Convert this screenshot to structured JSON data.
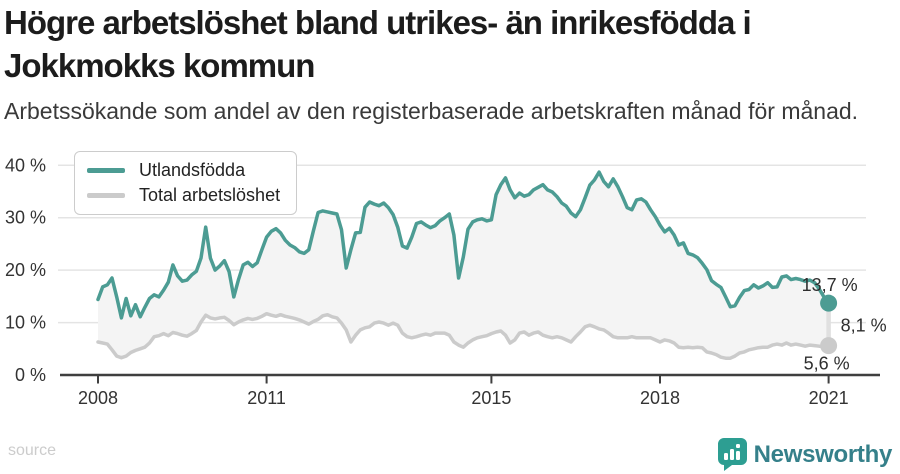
{
  "header": {
    "title": "Högre arbetslöshet bland utrikes- än inrikesfödda i Jokkmokks kommun",
    "subtitle": "Arbetssökande som andel av den registerbaserade arbetskraften månad för månad."
  },
  "legend": {
    "items": [
      {
        "label": "Utlandsfödda",
        "color": "#4c9c93"
      },
      {
        "label": "Total arbetslöshet",
        "color": "#cbcbcb"
      }
    ]
  },
  "footer": {
    "source_label": "source",
    "brand_name": "Newsworthy"
  },
  "colors": {
    "accent_teal": "#4c9c93",
    "series_gray": "#cbcbcb",
    "band_fill": "#f4f4f4",
    "gridline": "#e4e4e4",
    "axis": "#3f3f3f",
    "label_text": "#333333",
    "connector": "#e0e0e0",
    "logo_teal": "#2d9e92",
    "logo_text": "#35808a"
  },
  "chart_data": {
    "type": "line",
    "title": "Arbetssökande som andel av den registerbaserade arbetskraften månad för månad",
    "x_unit": "month",
    "x_start": "2008-01",
    "x_end": "2021-01",
    "x_tick_years": [
      2008,
      2011,
      2015,
      2018,
      2021
    ],
    "y_ticks": [
      0,
      10,
      20,
      30,
      40
    ],
    "y_tick_labels": [
      "0 %",
      "10 %",
      "20 %",
      "30 %",
      "40 %"
    ],
    "ylim": [
      0,
      42
    ],
    "grid": "horizontal",
    "legend_position": "top-left",
    "fill_between_series": true,
    "end_labels": {
      "series1_end": "13,7 %",
      "gap": "8,1 %",
      "series2_end": "5,6 %"
    },
    "series": [
      {
        "name": "Utlandsfödda",
        "color": "#4c9c93",
        "values": [
          14.4,
          16.8,
          17.2,
          18.5,
          14.9,
          10.9,
          14.6,
          11.3,
          13.4,
          11.1,
          12.9,
          14.6,
          15.3,
          14.9,
          16.2,
          17.7,
          21.0,
          18.9,
          17.9,
          18.1,
          19.1,
          19.8,
          22.3,
          28.2,
          22.3,
          20.0,
          20.8,
          21.8,
          19.7,
          14.9,
          18.2,
          21.0,
          21.5,
          20.7,
          21.4,
          23.9,
          26.3,
          27.4,
          27.9,
          27.1,
          25.7,
          24.8,
          24.3,
          23.5,
          23.2,
          23.9,
          27.5,
          31.0,
          31.3,
          31.1,
          30.9,
          30.7,
          27.7,
          20.4,
          23.9,
          27.1,
          27.2,
          32.0,
          33.0,
          32.6,
          32.3,
          32.8,
          31.9,
          30.6,
          28.2,
          24.6,
          24.2,
          26.3,
          28.9,
          29.2,
          28.6,
          28.1,
          28.5,
          29.4,
          30.0,
          30.7,
          26.7,
          18.5,
          22.5,
          27.8,
          29.2,
          29.6,
          29.8,
          29.4,
          29.6,
          34.4,
          36.3,
          37.6,
          35.3,
          33.8,
          34.7,
          34.1,
          34.4,
          35.3,
          35.8,
          36.3,
          35.3,
          34.9,
          34.0,
          32.8,
          32.2,
          30.9,
          30.2,
          31.5,
          33.8,
          36.2,
          37.2,
          38.7,
          36.9,
          35.9,
          37.4,
          35.9,
          34.0,
          31.9,
          31.5,
          33.4,
          33.6,
          33.0,
          31.5,
          30.2,
          28.6,
          27.3,
          28.0,
          26.7,
          24.8,
          25.2,
          23.2,
          22.9,
          22.4,
          21.3,
          20.1,
          18.0,
          17.3,
          16.7,
          14.9,
          13.0,
          13.2,
          14.8,
          16.1,
          16.3,
          17.2,
          16.6,
          17.0,
          17.6,
          16.7,
          16.8,
          18.7,
          18.9,
          18.2,
          18.4,
          18.2,
          17.9,
          18.1,
          17.6,
          16.4,
          14.9,
          13.7
        ]
      },
      {
        "name": "Total arbetslöshet",
        "color": "#cbcbcb",
        "values": [
          6.3,
          6.1,
          5.9,
          4.8,
          3.6,
          3.3,
          3.6,
          4.3,
          4.7,
          5.0,
          5.3,
          6.1,
          7.3,
          7.5,
          7.9,
          7.5,
          8.1,
          7.9,
          7.6,
          7.4,
          7.9,
          8.5,
          10.1,
          11.4,
          10.9,
          10.7,
          10.9,
          11.0,
          10.4,
          9.6,
          10.1,
          10.5,
          10.8,
          10.6,
          10.8,
          11.2,
          11.7,
          11.4,
          11.2,
          11.5,
          11.2,
          11.0,
          10.8,
          10.5,
          10.1,
          9.7,
          10.2,
          10.6,
          11.3,
          11.5,
          11.1,
          10.9,
          9.9,
          8.6,
          6.3,
          7.6,
          8.6,
          9.0,
          9.2,
          9.9,
          10.1,
          9.9,
          9.5,
          9.9,
          9.5,
          8.0,
          7.3,
          7.1,
          7.3,
          7.6,
          7.8,
          7.6,
          8.0,
          8.0,
          8.0,
          7.6,
          6.3,
          5.7,
          5.3,
          6.1,
          6.7,
          7.1,
          7.3,
          7.5,
          7.9,
          8.2,
          8.4,
          7.6,
          6.1,
          6.7,
          8.0,
          8.2,
          7.6,
          8.0,
          8.2,
          7.6,
          7.3,
          7.1,
          7.3,
          7.1,
          6.7,
          6.3,
          7.3,
          8.2,
          9.2,
          9.5,
          9.2,
          8.8,
          8.6,
          8.0,
          7.3,
          7.1,
          7.1,
          7.1,
          7.3,
          7.1,
          7.1,
          7.1,
          7.1,
          6.7,
          6.3,
          6.7,
          6.5,
          6.1,
          5.3,
          5.2,
          5.3,
          5.2,
          5.3,
          5.2,
          4.4,
          4.2,
          3.9,
          3.4,
          3.2,
          3.2,
          3.6,
          4.2,
          4.4,
          4.8,
          5.0,
          5.2,
          5.3,
          5.3,
          5.7,
          5.9,
          5.7,
          6.1,
          5.7,
          5.9,
          5.7,
          5.5,
          5.7,
          5.6,
          5.5,
          5.5,
          5.6
        ]
      }
    ]
  }
}
